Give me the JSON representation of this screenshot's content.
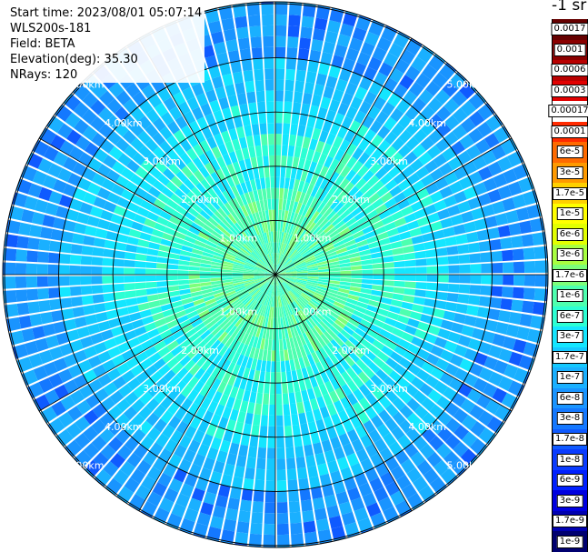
{
  "header": {
    "start_time": "Start time: 2023/08/01 05:07:14",
    "instrument": "WLS200s-181",
    "field": "Field: BETA",
    "elevation": "Elevation(deg): 35.30",
    "nrays": "NRays: 120"
  },
  "colorbar": {
    "title": "-1 sr",
    "labels": [
      "0.0017",
      "0.001",
      "0.0006",
      "0.0003",
      "0.00017",
      "0.0001",
      "6e-5",
      "3e-5",
      "1.7e-5",
      "1e-5",
      "6e-6",
      "3e-6",
      "1.7e-6",
      "1e-6",
      "6e-7",
      "3e-7",
      "1.7e-7",
      "1e-7",
      "6e-8",
      "3e-8",
      "1.7e-8",
      "1e-8",
      "6e-9",
      "3e-9",
      "1.7e-9",
      "1e-9"
    ],
    "colors": [
      "#650000",
      "#8a0000",
      "#b80000",
      "#e10000",
      "#ffffff",
      "#ff2b00",
      "#ff6a00",
      "#ff9a00",
      "#ffd000",
      "#ffff00",
      "#e2ff00",
      "#a8ff40",
      "#7cff7a",
      "#4dffaf",
      "#2cffd4",
      "#14e6ff",
      "#14c8ff",
      "#1ab0ff",
      "#1994ff",
      "#1478ff",
      "#0f5aff",
      "#0a3cff",
      "#0020ff",
      "#0000e0",
      "#0000b0",
      "#000070"
    ]
  },
  "chart_data": {
    "type": "heatmap",
    "title": "",
    "projection": "polar (PPI scan)",
    "nrays": 120,
    "range_rings_km": [
      1,
      2,
      3,
      4,
      5
    ],
    "range_labels": [
      "1.00km",
      "2.00km",
      "3.00km",
      "4.00km",
      "5.00km"
    ],
    "radial_lines_deg": [
      0,
      30,
      60,
      90,
      120,
      150,
      180,
      210,
      240,
      270,
      300,
      330
    ],
    "value_zones": [
      {
        "range_km": [
          0,
          1.0
        ],
        "typical_value": "1e-7 .. 1.7e-7"
      },
      {
        "range_km": [
          1.0,
          2.5
        ],
        "typical_value": "1e-7"
      },
      {
        "range_km": [
          2.5,
          4.0
        ],
        "typical_value": "3e-8 .. 6e-8"
      },
      {
        "range_km": [
          4.0,
          5.0
        ],
        "typical_value": "1.7e-8 .. 3e-8"
      }
    ],
    "grid": true
  }
}
